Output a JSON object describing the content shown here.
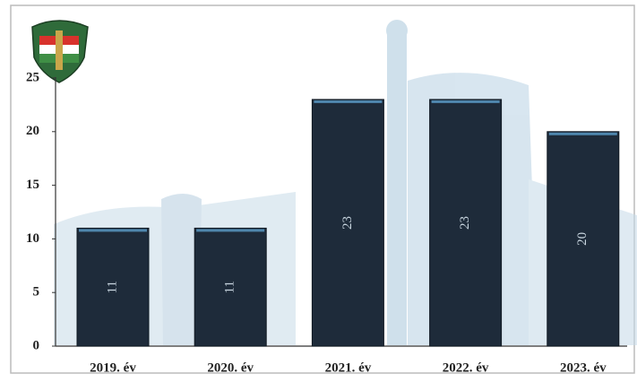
{
  "chart_data": {
    "type": "bar",
    "categories": [
      "2019. év",
      "2020. év",
      "2021. év",
      "2022. év",
      "2023. év"
    ],
    "values": [
      11,
      11,
      23,
      23,
      20
    ],
    "color": "#1e2b3a",
    "ylim": [
      0,
      25
    ],
    "yticks": [
      0,
      5,
      10,
      15,
      20,
      25
    ],
    "grid": false
  }
}
